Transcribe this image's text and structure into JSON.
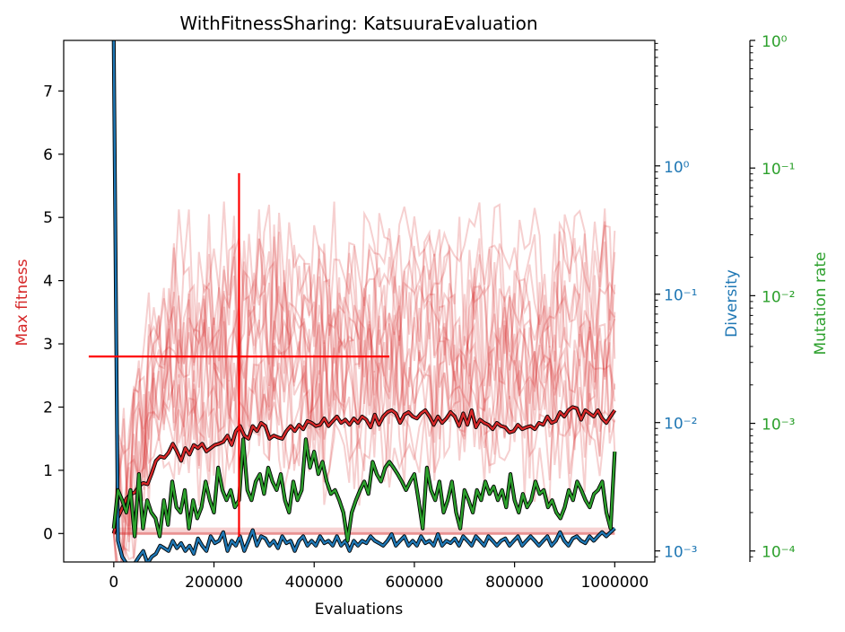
{
  "chart_data": {
    "type": "line",
    "title": "WithFitnessSharing: KatsuuraEvaluation",
    "xlabel": "Evaluations",
    "xlim": [
      -100000,
      1080000
    ],
    "xticks": [
      0,
      200000,
      400000,
      600000,
      800000,
      1000000
    ],
    "xtick_labels": [
      "0",
      "200000",
      "400000",
      "600000",
      "800000",
      "1000000"
    ],
    "left_axis": {
      "label": "Max fitness",
      "color": "#d62728",
      "ylim": [
        -0.45,
        7.8
      ],
      "ticks": [
        0,
        1,
        2,
        3,
        4,
        5,
        6,
        7
      ],
      "tick_labels": [
        "0",
        "1",
        "2",
        "3",
        "4",
        "5",
        "6",
        "7"
      ]
    },
    "diversity_axis": {
      "label": "Diversity",
      "color": "#1f77b4",
      "scale": "log",
      "ylim": [
        0.00082,
        9.5
      ],
      "ticks": [
        0.001,
        0.01,
        0.1,
        1
      ],
      "tick_labels": [
        "10⁻³",
        "10⁻²",
        "10⁻¹",
        "10⁰"
      ]
    },
    "mutation_axis": {
      "label": "Mutation rate",
      "color": "#2ca02c",
      "scale": "log",
      "ylim": [
        8.2e-05,
        1.0
      ],
      "ticks": [
        0.0001,
        0.001,
        0.01,
        0.1,
        1
      ],
      "tick_labels": [
        "10⁻⁴",
        "10⁻³",
        "10⁻²",
        "10⁻¹",
        "10⁰"
      ]
    },
    "cross_marker": {
      "x": 250000,
      "y": 2.8,
      "x_range": [
        -50000,
        550000
      ],
      "y_range": [
        -0.05,
        5.7
      ],
      "color": "#ff0000"
    },
    "series": [
      {
        "name": "Max fitness (mean)",
        "axis": "left",
        "color": "#d62728",
        "x_start": 0,
        "x_end": 1000000,
        "values": [
          0.0,
          0.25,
          0.4,
          0.55,
          0.62,
          0.65,
          0.75,
          0.8,
          0.78,
          0.95,
          1.15,
          1.22,
          1.2,
          1.28,
          1.42,
          1.3,
          1.15,
          1.35,
          1.25,
          1.4,
          1.35,
          1.42,
          1.3,
          1.35,
          1.4,
          1.42,
          1.45,
          1.55,
          1.4,
          1.62,
          1.7,
          1.55,
          1.5,
          1.7,
          1.62,
          1.75,
          1.7,
          1.5,
          1.55,
          1.52,
          1.5,
          1.62,
          1.7,
          1.62,
          1.72,
          1.65,
          1.78,
          1.75,
          1.7,
          1.72,
          1.82,
          1.7,
          1.78,
          1.85,
          1.75,
          1.8,
          1.72,
          1.82,
          1.75,
          1.85,
          1.8,
          1.68,
          1.88,
          1.72,
          1.85,
          1.92,
          1.95,
          1.9,
          1.75,
          1.88,
          1.92,
          1.85,
          1.82,
          1.9,
          1.95,
          1.85,
          1.72,
          1.85,
          1.75,
          1.82,
          1.92,
          1.85,
          1.7,
          1.9,
          1.72,
          1.95,
          1.68,
          1.8,
          1.75,
          1.72,
          1.65,
          1.75,
          1.7,
          1.68,
          1.6,
          1.62,
          1.72,
          1.65,
          1.68,
          1.7,
          1.65,
          1.75,
          1.72,
          1.85,
          1.75,
          1.78,
          1.92,
          1.85,
          1.95,
          2.0,
          1.98,
          1.8,
          1.95,
          1.9,
          1.85,
          1.95,
          1.82,
          1.75,
          1.85,
          1.95
        ]
      },
      {
        "name": "Diversity",
        "axis": "diversity",
        "color": "#1f77b4",
        "x_start": 0,
        "x_end": 1000000,
        "values": [
          9.5,
          0.0012,
          0.0009,
          0.0008,
          0.0007,
          0.0008,
          0.0009,
          0.001,
          0.0008,
          0.0009,
          0.00095,
          0.0011,
          0.00105,
          0.001,
          0.0012,
          0.00105,
          0.00115,
          0.001,
          0.0011,
          0.00095,
          0.00125,
          0.0011,
          0.001,
          0.0013,
          0.00115,
          0.0012,
          0.0014,
          0.001,
          0.0012,
          0.0011,
          0.0013,
          0.001,
          0.0012,
          0.00145,
          0.0011,
          0.0013,
          0.00125,
          0.0011,
          0.0012,
          0.00105,
          0.0013,
          0.00115,
          0.0012,
          0.001,
          0.0012,
          0.0013,
          0.0011,
          0.0012,
          0.0011,
          0.0013,
          0.00115,
          0.0012,
          0.0011,
          0.0013,
          0.0011,
          0.0012,
          0.001,
          0.0012,
          0.0011,
          0.0012,
          0.00115,
          0.0013,
          0.0012,
          0.00115,
          0.0011,
          0.0012,
          0.00135,
          0.0011,
          0.0012,
          0.0013,
          0.0011,
          0.0012,
          0.0011,
          0.0013,
          0.00115,
          0.0012,
          0.0011,
          0.00135,
          0.0011,
          0.0012,
          0.00115,
          0.00125,
          0.0011,
          0.0013,
          0.0012,
          0.0011,
          0.0013,
          0.0012,
          0.0011,
          0.0013,
          0.0012,
          0.0011,
          0.0012,
          0.00125,
          0.0011,
          0.0012,
          0.0013,
          0.0011,
          0.0012,
          0.0013,
          0.0012,
          0.0011,
          0.0012,
          0.0013,
          0.0011,
          0.0012,
          0.0014,
          0.0012,
          0.0011,
          0.00125,
          0.0013,
          0.0012,
          0.00115,
          0.0013,
          0.0012,
          0.0013,
          0.0014,
          0.0013,
          0.0014,
          0.0015
        ]
      },
      {
        "name": "Mutation rate",
        "axis": "mutation",
        "color": "#2ca02c",
        "x_start": 0,
        "x_end": 1000000,
        "values": [
          0.00015,
          0.0003,
          0.00025,
          0.0002,
          0.0003,
          0.00013,
          0.0004,
          0.00015,
          0.00025,
          0.0002,
          0.00018,
          0.00013,
          0.00025,
          0.00016,
          0.00035,
          0.00022,
          0.0002,
          0.0003,
          0.00015,
          0.00025,
          0.00018,
          0.00022,
          0.00035,
          0.00025,
          0.0002,
          0.00045,
          0.0003,
          0.00025,
          0.0003,
          0.00022,
          0.00025,
          0.00075,
          0.0003,
          0.00025,
          0.00035,
          0.0004,
          0.00028,
          0.00045,
          0.00035,
          0.0003,
          0.0004,
          0.00025,
          0.0002,
          0.00035,
          0.00025,
          0.0003,
          0.00075,
          0.00045,
          0.0006,
          0.0004,
          0.0005,
          0.00035,
          0.00028,
          0.0003,
          0.00025,
          0.0002,
          0.00012,
          0.0002,
          0.00025,
          0.0003,
          0.00035,
          0.00028,
          0.0005,
          0.0004,
          0.00035,
          0.00045,
          0.0005,
          0.00045,
          0.0004,
          0.00035,
          0.0003,
          0.00035,
          0.0004,
          0.00025,
          0.00015,
          0.00045,
          0.0003,
          0.00025,
          0.00035,
          0.0002,
          0.00025,
          0.00035,
          0.0002,
          0.00015,
          0.0003,
          0.00025,
          0.0002,
          0.0003,
          0.00025,
          0.00035,
          0.00028,
          0.00032,
          0.00025,
          0.0003,
          0.00022,
          0.0004,
          0.00025,
          0.0002,
          0.00028,
          0.00022,
          0.00025,
          0.00035,
          0.00028,
          0.0003,
          0.00022,
          0.00025,
          0.0002,
          0.00018,
          0.00022,
          0.0003,
          0.00025,
          0.00035,
          0.0003,
          0.00025,
          0.00022,
          0.00028,
          0.0003,
          0.00035,
          0.0002,
          0.00015,
          0.0006
        ]
      }
    ],
    "background_runs": {
      "axis": "left",
      "color": "#d62728",
      "opacity": 0.22,
      "count": 14,
      "x_start": 0,
      "x_end": 1000000,
      "points": 100
    }
  }
}
